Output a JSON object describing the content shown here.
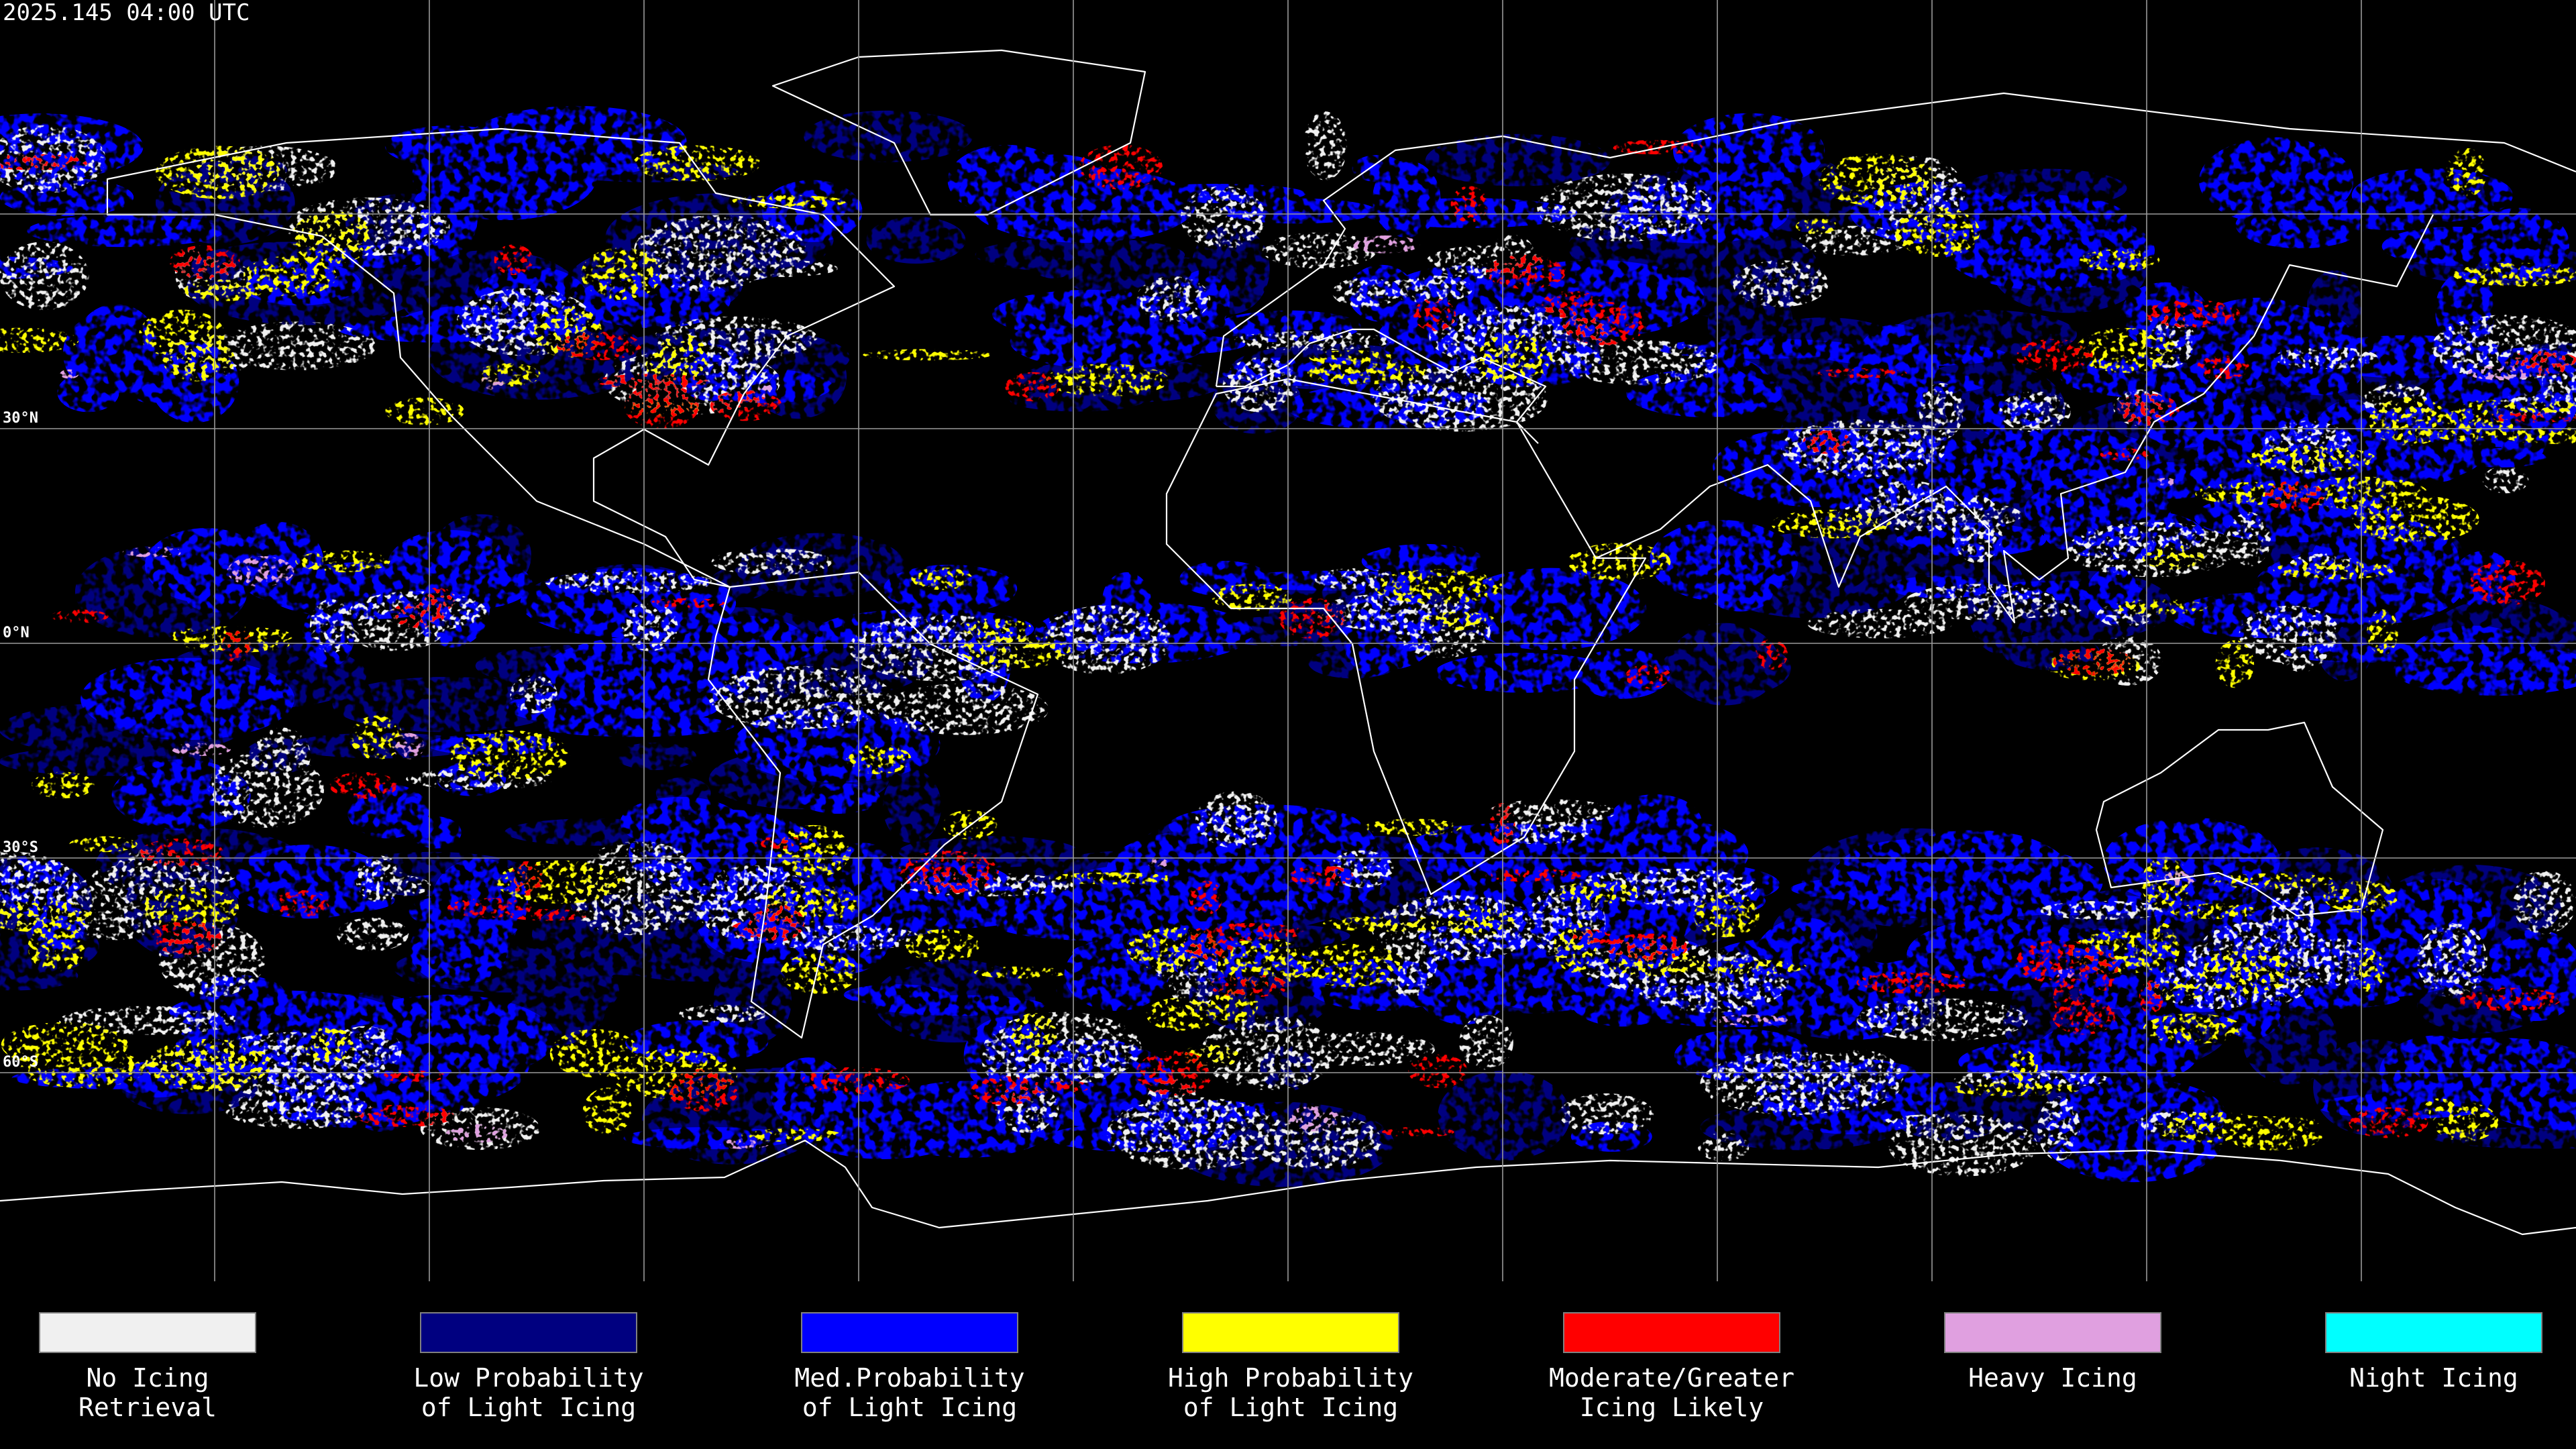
{
  "timestamp": "2025.145 04:00 UTC",
  "lat_labels": [
    "30°N",
    "0°N",
    "30°S",
    "60°S"
  ],
  "legend": {
    "items": [
      {
        "lines": [
          "No Icing",
          "Retrieval"
        ],
        "color": "#f0f0f0"
      },
      {
        "lines": [
          "Low Probability",
          "of Light Icing"
        ],
        "color": "#000080"
      },
      {
        "lines": [
          "Med.Probability",
          "of Light Icing"
        ],
        "color": "#0000ff"
      },
      {
        "lines": [
          "High Probability",
          "of Light Icing"
        ],
        "color": "#ffff00"
      },
      {
        "lines": [
          "Moderate/Greater",
          "Icing Likely"
        ],
        "color": "#ff0000"
      },
      {
        "lines": [
          "Heavy Icing"
        ],
        "color": "#e0a0e0"
      },
      {
        "lines": [
          "Night Icing"
        ],
        "color": "#00ffff"
      }
    ]
  }
}
